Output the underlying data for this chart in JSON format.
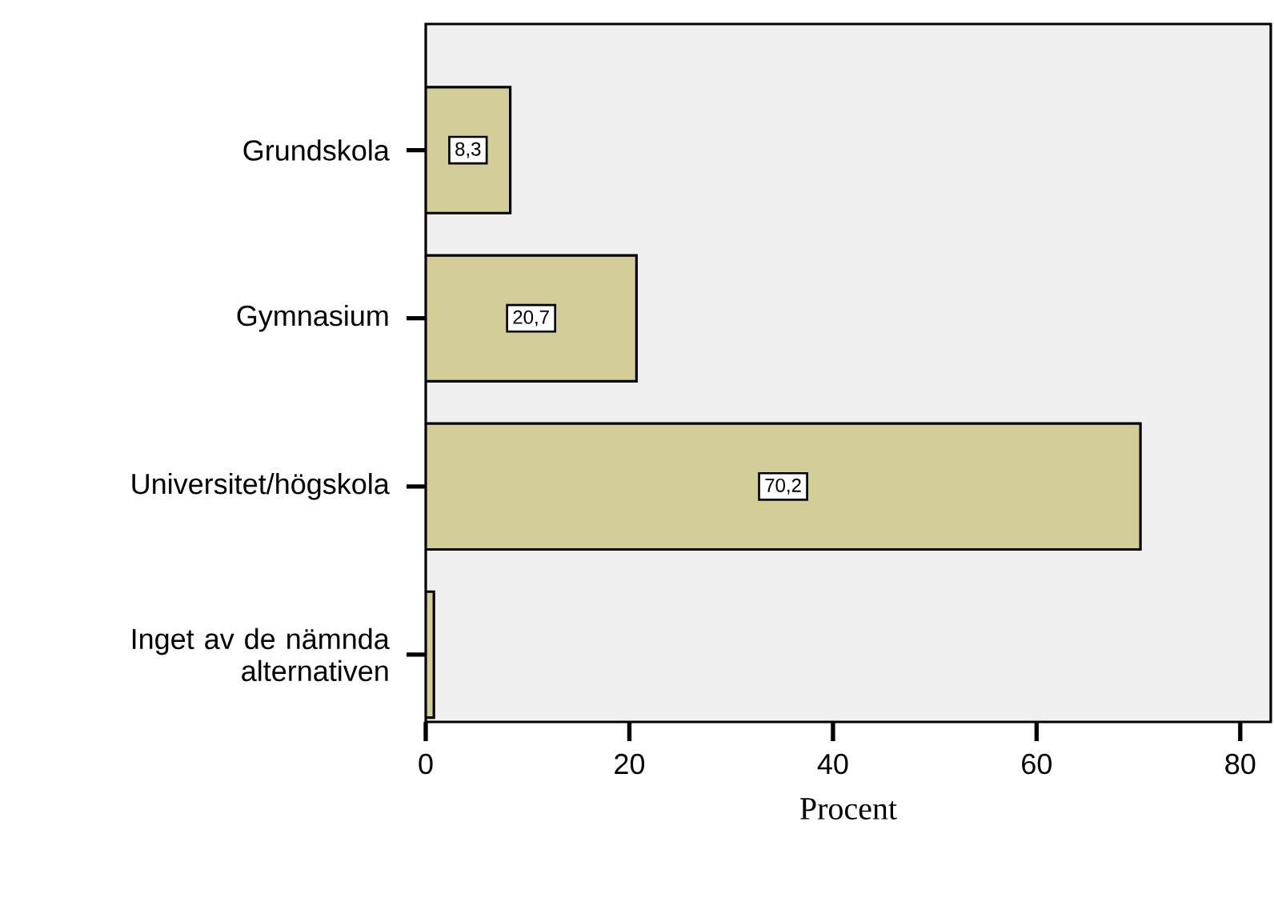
{
  "chart_data": {
    "type": "bar",
    "orientation": "horizontal",
    "xlabel": "Procent",
    "categories": [
      "Grundskola",
      "Gymnasium",
      "Universitet/högskola",
      "Inget av de nämnda alternativen"
    ],
    "values": [
      8.3,
      20.7,
      70.2,
      0.8
    ],
    "value_labels": [
      "8,3",
      "20,7",
      "70,2",
      null
    ],
    "color": "#d3cd98",
    "xlim": [
      0,
      83
    ],
    "xticks": [
      0,
      20,
      40,
      60,
      80
    ]
  }
}
